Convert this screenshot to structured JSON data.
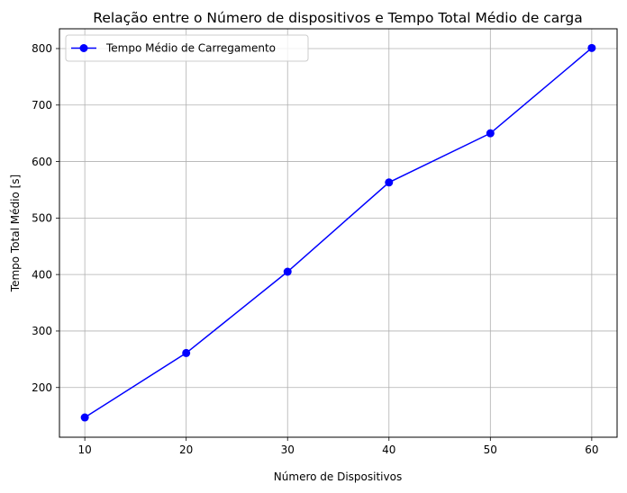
{
  "chart_data": {
    "type": "line",
    "title": "Relação entre o Número de dispositivos e Tempo Total Médio de carga",
    "xlabel": "Número de Dispositivos",
    "ylabel": "Tempo Total Médio [s]",
    "x": [
      10,
      20,
      30,
      40,
      50,
      60
    ],
    "xticks": [
      "10",
      "20",
      "30",
      "40",
      "50",
      "60"
    ],
    "yticks": [
      "200",
      "300",
      "400",
      "500",
      "600",
      "700",
      "800"
    ],
    "xlim": [
      7.5,
      62.5
    ],
    "ylim": [
      112,
      835
    ],
    "grid": true,
    "legend_position": "top-left",
    "series": [
      {
        "name": "Tempo Médio de Carregamento",
        "values": [
          147,
          261,
          405,
          563,
          650,
          801
        ],
        "color": "#0000ff",
        "marker": "circle"
      }
    ]
  }
}
